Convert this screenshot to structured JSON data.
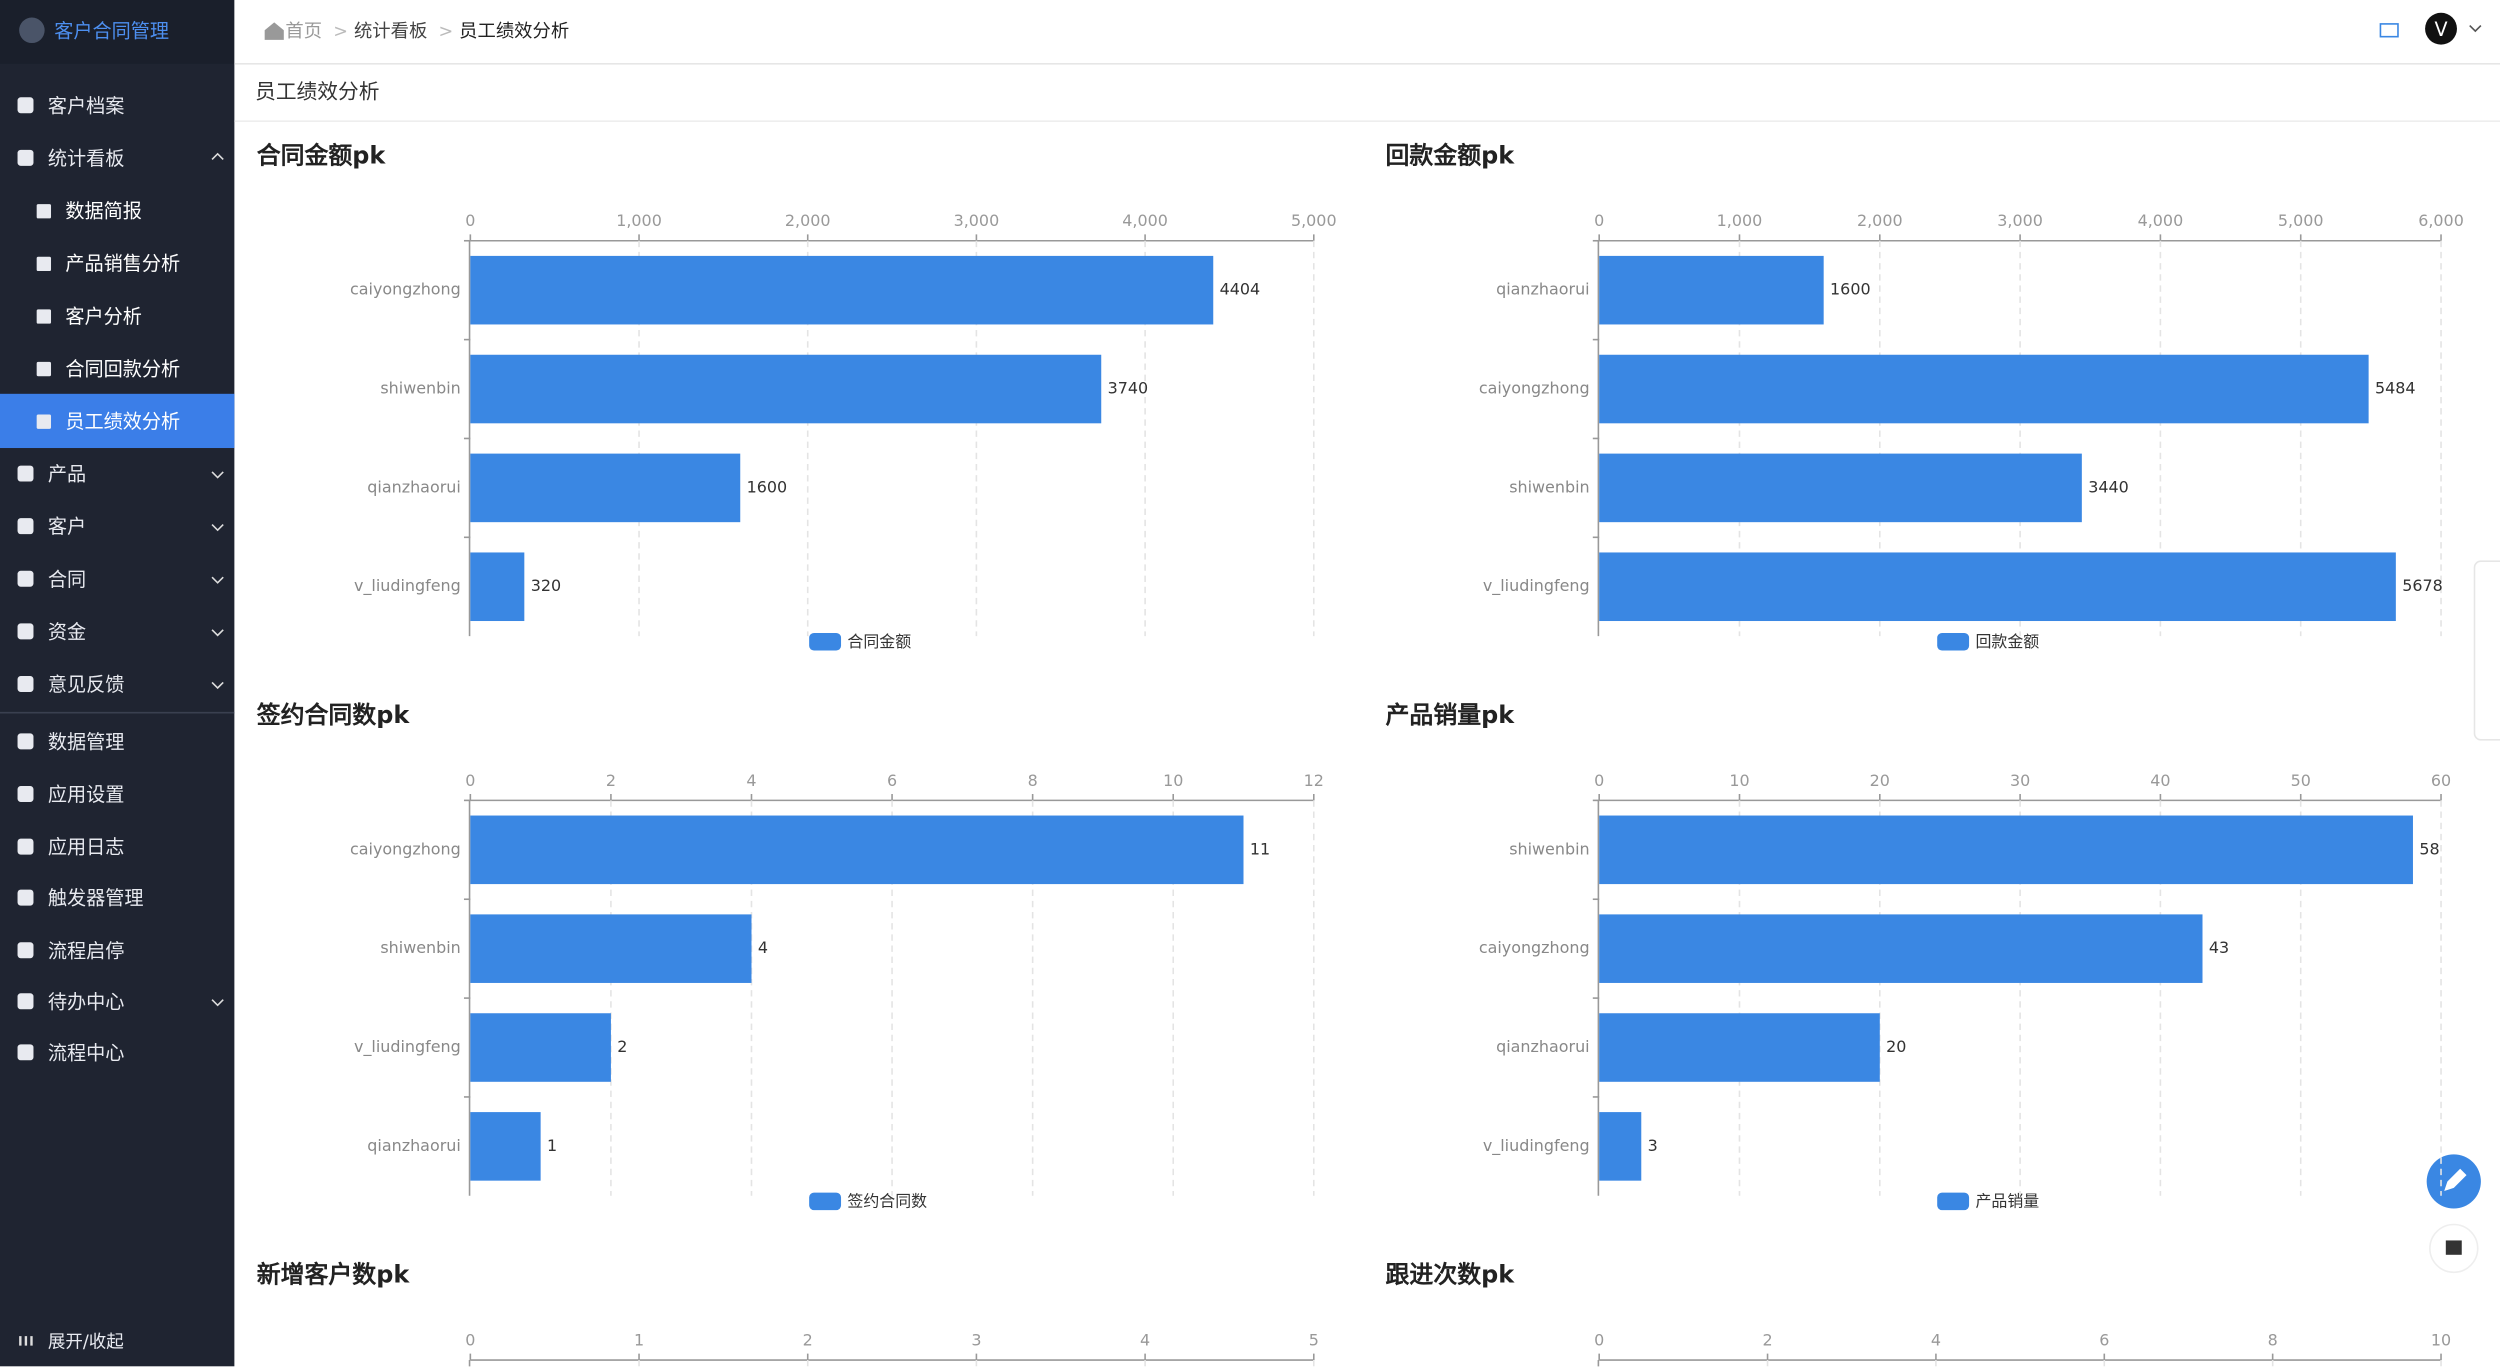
{
  "header": {
    "app_title": "客户合同管理",
    "breadcrumb": [
      "首页",
      "统计看板",
      "员工绩效分析"
    ],
    "avatar": "V"
  },
  "sidebar": {
    "items": [
      {
        "label": "客户档案"
      },
      {
        "label": "统计看板",
        "children": [
          "数据简报",
          "产品销售分析",
          "客户分析",
          "合同回款分析",
          "员工绩效分析"
        ]
      },
      {
        "label": "产品"
      },
      {
        "label": "客户"
      },
      {
        "label": "合同"
      },
      {
        "label": "资金"
      },
      {
        "label": "意见反馈"
      },
      {
        "label": "数据管理"
      },
      {
        "label": "应用设置"
      },
      {
        "label": "应用日志"
      },
      {
        "label": "触发器管理"
      },
      {
        "label": "流程启停"
      },
      {
        "label": "待办中心"
      },
      {
        "label": "流程中心"
      }
    ],
    "toggle": "展开/收起"
  },
  "page_title": "员工绩效分析",
  "chart_data": [
    {
      "type": "bar",
      "title": "合同金额pk",
      "categories": [
        "caiyongzhong",
        "shiwenbin",
        "qianzhaorui",
        "v_liudingfeng"
      ],
      "series": [
        {
          "name": "合同金额",
          "color": "#3a87e3",
          "values": [
            4404,
            3740,
            1600,
            320
          ]
        }
      ],
      "xlim": [
        0,
        5000
      ],
      "xticks": [
        0,
        {
          "value": 1000,
          "label": "1,000"
        },
        {
          "value": 2000,
          "label": "2,000"
        },
        {
          "value": 3000,
          "label": "3,000"
        },
        {
          "value": 4000,
          "label": "4,000"
        },
        {
          "value": 5000,
          "label": "5,000"
        }
      ]
    },
    {
      "type": "bar",
      "title": "回款金额pk",
      "categories": [
        "qianzhaorui",
        "caiyongzhong",
        "shiwenbin",
        "v_liudingfeng"
      ],
      "series": [
        {
          "name": "回款金额",
          "color": "#3a87e3",
          "values": [
            1600,
            5484,
            3440,
            5678
          ]
        }
      ],
      "xlim": [
        0,
        6000
      ],
      "xticks": [
        0,
        {
          "value": 1000,
          "label": "1,000"
        },
        {
          "value": 2000,
          "label": "2,000"
        },
        {
          "value": 3000,
          "label": "3,000"
        },
        {
          "value": 4000,
          "label": "4,000"
        },
        {
          "value": 5000,
          "label": "5,000"
        },
        {
          "value": 6000,
          "label": "6,000"
        }
      ]
    },
    {
      "type": "bar",
      "title": "签约合同数pk",
      "categories": [
        "caiyongzhong",
        "shiwenbin",
        "v_liudingfeng",
        "qianzhaorui"
      ],
      "series": [
        {
          "name": "签约合同数",
          "color": "#3a87e3",
          "values": [
            11,
            4,
            2,
            1
          ]
        }
      ],
      "xlim": [
        0,
        12
      ],
      "xticks": [
        0,
        2,
        4,
        6,
        8,
        10,
        12
      ]
    },
    {
      "type": "bar",
      "title": "产品销量pk",
      "categories": [
        "shiwenbin",
        "caiyongzhong",
        "qianzhaorui",
        "v_liudingfeng"
      ],
      "series": [
        {
          "name": "产品销量",
          "color": "#3a87e3",
          "values": [
            58,
            43,
            20,
            3
          ]
        }
      ],
      "xlim": [
        0,
        60
      ],
      "xticks": [
        0,
        10,
        20,
        30,
        40,
        50,
        60
      ]
    },
    {
      "type": "bar",
      "title": "新增客户数pk",
      "xlim": [
        0,
        5
      ],
      "xticks": [
        0,
        1,
        2,
        3,
        4,
        5
      ]
    },
    {
      "type": "bar",
      "title": "跟进次数pk",
      "xlim": [
        0,
        10
      ],
      "xticks": [
        0,
        2,
        4,
        6,
        8,
        10
      ]
    }
  ]
}
